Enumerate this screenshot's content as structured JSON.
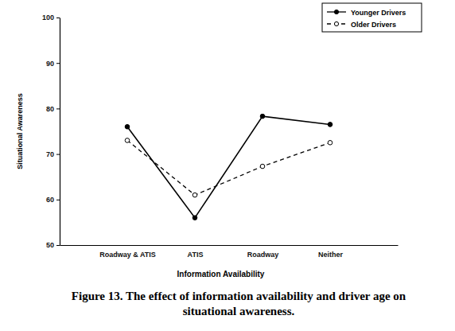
{
  "chart_data": {
    "type": "line",
    "title": "Figure 13.  The effect of information availability and driver age on situational awareness.",
    "x_label": "Information Availability",
    "y_label": "Situational Awareness",
    "categories": [
      "Roadway & ATIS",
      "ATIS",
      "Roadway",
      "Neither"
    ],
    "series": [
      {
        "name": "Younger Drivers",
        "color": "#000000",
        "marker": "filled-circle",
        "line_style": "solid",
        "values": [
          76,
          56,
          78.3,
          76.5
        ]
      },
      {
        "name": "Older Drivers",
        "color": "#000000",
        "marker": "open-circle",
        "line_style": "dashed",
        "values": [
          73,
          61,
          67.3,
          72.5
        ]
      }
    ],
    "ylim": [
      50,
      100
    ],
    "yticks": [
      50,
      60,
      70,
      80,
      90,
      100
    ],
    "grid": false,
    "legend": "upper right"
  }
}
